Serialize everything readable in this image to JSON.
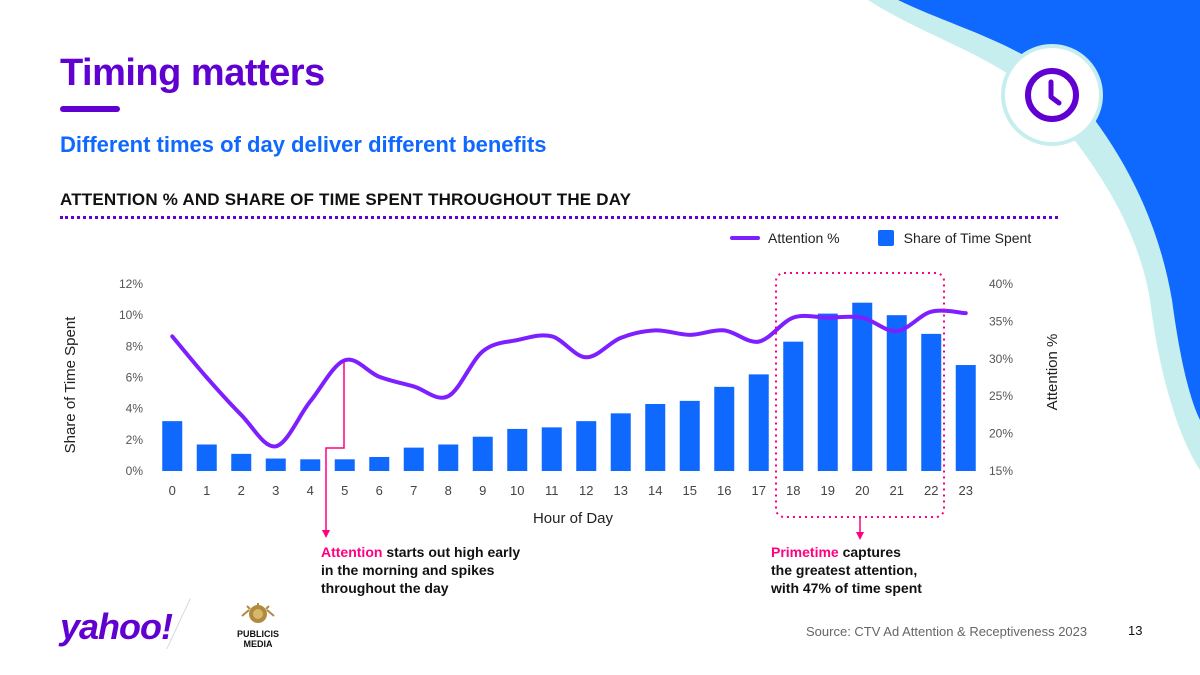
{
  "header": {
    "title": "Timing matters",
    "subtitle": "Different times of day deliver different benefits",
    "chart_heading": "ATTENTION % AND  SHARE OF TIME SPENT THROUGHOUT THE DAY"
  },
  "legend": {
    "line_label": "Attention %",
    "bar_label": "Share of Time Spent"
  },
  "annotations": {
    "attention": {
      "highlight": "Attention",
      "rest_line1": " starts out high early",
      "line2": "in the morning and spikes",
      "line3": "throughout the day"
    },
    "primetime": {
      "highlight": "Primetime",
      "rest_line1": " captures",
      "line2": "the greatest attention,",
      "line3": "with 47% of time spent"
    }
  },
  "footer": {
    "logo_text": "yahoo!",
    "partner_text_1": "PUBLICIS",
    "partner_text_2": "MEDIA",
    "source": "Source: CTV Ad Attention & Receptiveness 2023",
    "page_number": "13"
  },
  "colors": {
    "brand_purple": "#6001d2",
    "line_purple": "#7e1fff",
    "bar_blue": "#0f69ff",
    "accent_pink": "#ff0080",
    "shape_blue": "#0f69ff",
    "shape_cyan": "#c7eeee"
  },
  "icons": {
    "badge": "clock-icon"
  },
  "chart_data": {
    "type": "bar",
    "xlabel": "Hour of Day",
    "ylabel": "Share of Time Spent",
    "y2label": "Attention %",
    "categories": [
      "0",
      "1",
      "2",
      "3",
      "4",
      "5",
      "6",
      "7",
      "8",
      "9",
      "10",
      "11",
      "12",
      "13",
      "14",
      "15",
      "16",
      "17",
      "18",
      "19",
      "20",
      "21",
      "22",
      "23"
    ],
    "ylim": [
      0,
      12
    ],
    "y_ticks": [
      "0%",
      "2%",
      "4%",
      "6%",
      "8%",
      "10%",
      "12%"
    ],
    "y2lim": [
      15,
      40
    ],
    "y2_ticks": [
      "15%",
      "20%",
      "25%",
      "30%",
      "35%",
      "40%"
    ],
    "series": [
      {
        "name": "Share of Time Spent",
        "type": "bar",
        "axis": "left",
        "values": [
          3.2,
          1.7,
          1.1,
          0.8,
          0.75,
          0.75,
          0.9,
          1.5,
          1.7,
          2.2,
          2.7,
          2.8,
          3.2,
          3.7,
          4.3,
          4.5,
          5.4,
          6.2,
          8.3,
          10.1,
          10.8,
          10.0,
          8.8,
          6.8
        ]
      },
      {
        "name": "Attention %",
        "type": "line",
        "axis": "right",
        "values": [
          33.0,
          27.5,
          22.5,
          18.3,
          24.3,
          29.8,
          27.6,
          26.3,
          25.0,
          31.0,
          32.5,
          33.0,
          30.2,
          32.8,
          33.8,
          33.2,
          33.8,
          32.3,
          35.5,
          35.5,
          35.5,
          33.7,
          36.3,
          36.1
        ]
      }
    ],
    "highlight_range": [
      "18",
      "22"
    ]
  }
}
